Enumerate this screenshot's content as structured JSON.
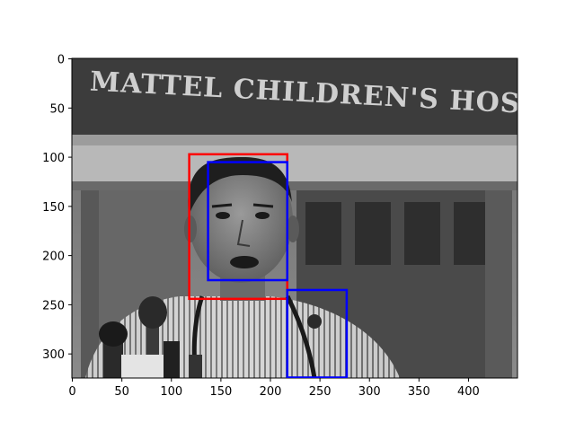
{
  "chart_data": {
    "type": "image",
    "title": "",
    "xlabel": "",
    "ylabel": "",
    "xlim": [
      -0.5,
      449.5
    ],
    "ylim": [
      324.5,
      -0.5
    ],
    "y_axis_inverted": true,
    "x_ticks": [
      0,
      50,
      100,
      150,
      200,
      250,
      300,
      350,
      400
    ],
    "y_ticks": [
      0,
      50,
      100,
      150,
      200,
      250,
      300
    ],
    "image": {
      "content": "grayscale photograph of a man speaking at microphones",
      "width": 450,
      "height": 325,
      "sign_text": "MATTEL CHILDREN'S HOSPITAL"
    },
    "boxes": [
      {
        "x0": 118,
        "y0": 97,
        "x1": 217,
        "y1": 244,
        "color": "#ff0000"
      },
      {
        "x0": 137,
        "y0": 105,
        "x1": 217,
        "y1": 225,
        "color": "#0000ff"
      },
      {
        "x0": 217,
        "y0": 235,
        "x1": 277,
        "y1": 324,
        "color": "#0000ff"
      }
    ]
  }
}
